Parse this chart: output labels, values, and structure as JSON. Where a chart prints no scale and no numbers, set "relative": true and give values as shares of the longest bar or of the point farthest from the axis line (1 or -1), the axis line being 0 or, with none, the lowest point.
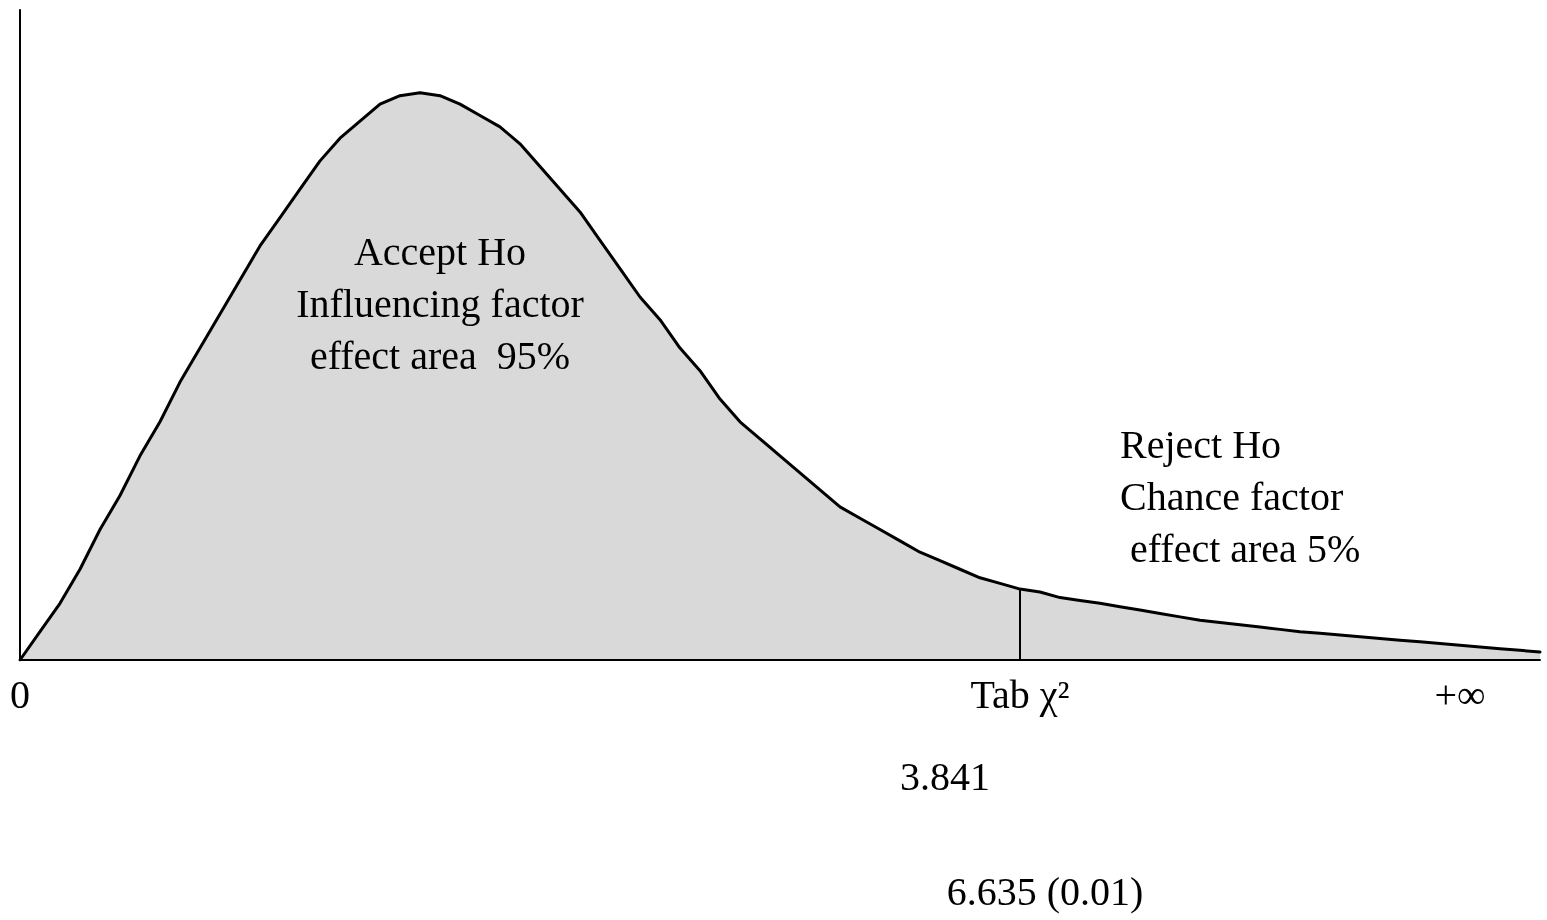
{
  "chart_data": {
    "type": "area",
    "relative": true,
    "grid": false,
    "marker": "none",
    "line_style": "solid",
    "categories": [
      "0",
      null,
      null,
      null,
      null,
      null,
      null,
      null,
      null,
      null,
      null,
      null,
      null,
      null,
      null,
      null,
      null,
      null,
      null,
      null,
      null,
      null,
      null,
      null,
      null,
      null,
      null,
      null,
      null,
      null,
      null,
      null,
      null,
      null,
      null,
      null,
      null,
      null,
      null,
      null,
      null,
      null,
      null,
      null,
      null,
      null,
      null,
      null,
      null,
      null,
      "Tab χ²",
      null,
      null,
      null,
      null,
      null,
      null,
      null,
      null,
      null,
      null,
      null,
      null,
      null,
      null,
      null,
      null,
      null,
      null,
      null,
      null,
      null,
      "+∞",
      null,
      null,
      null,
      null
    ],
    "series": [
      {
        "color": "#000000",
        "values": [
          0,
          0.05,
          0.1,
          0.16,
          0.23,
          0.29,
          0.36,
          0.42,
          0.49,
          0.55,
          0.61,
          0.67,
          0.73,
          0.78,
          0.83,
          0.88,
          0.92,
          0.95,
          0.98,
          0.995,
          1,
          0.995,
          0.98,
          0.96,
          0.94,
          0.91,
          0.87,
          0.83,
          0.79,
          0.74,
          0.69,
          0.64,
          0.6,
          0.55,
          0.51,
          0.46,
          0.42,
          0.39,
          0.36,
          0.33,
          0.3,
          0.27,
          0.25,
          0.23,
          0.21,
          0.19,
          0.175,
          0.16,
          0.145,
          0.135,
          0.125,
          0.12,
          0.11,
          0.105,
          0.1,
          0.094,
          0.088,
          0.082,
          0.076,
          0.07,
          0.066,
          0.062,
          0.058,
          0.054,
          0.05,
          0.047,
          0.044,
          0.041,
          0.038,
          0.035,
          0.032,
          0.029,
          0.026,
          0.023,
          0.02,
          0.017,
          0.014
        ]
      }
    ],
    "ref_lines": [
      {
        "axis": "x",
        "value": "Tab χ²",
        "label": null
      }
    ],
    "annotations": [
      "Accept Ho\nInfluencing factor\neffect area  95%",
      "Reject Ho\nChance factor\n effect area 5%",
      "3.841",
      "6.635 (0.01)"
    ]
  }
}
